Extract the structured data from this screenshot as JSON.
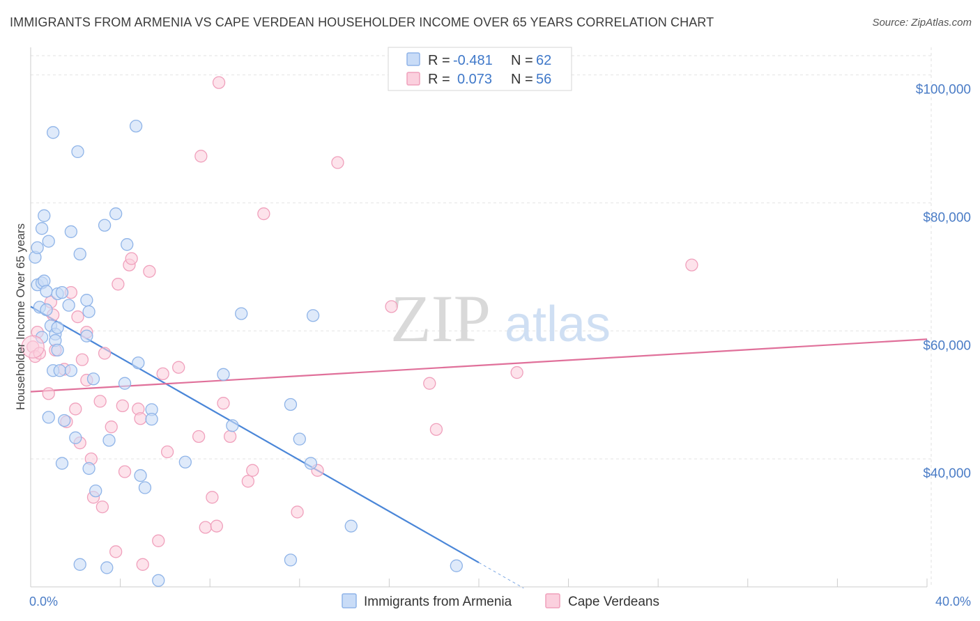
{
  "title": "IMMIGRANTS FROM ARMENIA VS CAPE VERDEAN HOUSEHOLDER INCOME OVER 65 YEARS CORRELATION CHART",
  "source": "Source: ZipAtlas.com",
  "watermark": {
    "zip": "ZIP",
    "atlas": "atlas"
  },
  "legend": [
    {
      "r_label": "R =",
      "r_value": "-0.481",
      "n_label": "N =",
      "n_value": "62",
      "color": "#8fb4e8",
      "fill": "#c9dcf7"
    },
    {
      "r_label": "R =",
      "r_value": "0.073",
      "n_label": "N =",
      "n_value": "56",
      "color": "#f0a0bc",
      "fill": "#fbd0de"
    }
  ],
  "bottom_legend": [
    {
      "label": "Immigrants from Armenia",
      "color": "#8fb4e8",
      "fill": "#c9dcf7"
    },
    {
      "label": "Cape Verdeans",
      "color": "#f0a0bc",
      "fill": "#fbd0de"
    }
  ],
  "chart_data": {
    "type": "scatter",
    "title": "IMMIGRANTS FROM ARMENIA VS CAPE VERDEAN HOUSEHOLDER INCOME OVER 65 YEARS CORRELATION CHART",
    "xlabel": "",
    "ylabel": "Householder Income Over 65 years",
    "xlim": [
      0,
      40
    ],
    "ylim": [
      20000,
      103000
    ],
    "x_tick_labels": [
      {
        "value": 0,
        "label": "0.0%"
      },
      {
        "value": 40,
        "label": "40.0%"
      }
    ],
    "y_tick_labels": [
      {
        "value": 40000,
        "label": "$40,000"
      },
      {
        "value": 60000,
        "label": "$60,000"
      },
      {
        "value": 80000,
        "label": "$80,000"
      },
      {
        "value": 100000,
        "label": "$100,000"
      }
    ],
    "grid": true,
    "legend_position": "top-center",
    "series": [
      {
        "name": "Immigrants from Armenia",
        "color": "#4a86d8",
        "fill": "#c9dcf7",
        "stroke": "#8fb4e8",
        "points": [
          [
            0.2,
            71.5
          ],
          [
            0.3,
            67.2
          ],
          [
            0.3,
            73.0
          ],
          [
            0.4,
            63.7
          ],
          [
            0.5,
            67.5
          ],
          [
            0.5,
            76.0
          ],
          [
            0.5,
            59.0
          ],
          [
            0.6,
            78.0
          ],
          [
            0.6,
            67.8
          ],
          [
            0.7,
            63.3
          ],
          [
            0.7,
            66.2
          ],
          [
            0.8,
            46.5
          ],
          [
            0.8,
            74.0
          ],
          [
            0.9,
            60.8
          ],
          [
            1.0,
            91.0
          ],
          [
            1.0,
            53.8
          ],
          [
            1.1,
            59.5
          ],
          [
            1.1,
            58.5
          ],
          [
            1.2,
            57.0
          ],
          [
            1.2,
            60.5
          ],
          [
            1.2,
            65.8
          ],
          [
            1.3,
            53.8
          ],
          [
            1.4,
            39.3
          ],
          [
            1.4,
            66.0
          ],
          [
            1.5,
            46.0
          ],
          [
            1.7,
            64.0
          ],
          [
            1.8,
            53.8
          ],
          [
            1.8,
            75.5
          ],
          [
            2.0,
            43.3
          ],
          [
            2.1,
            88.0
          ],
          [
            2.2,
            72.0
          ],
          [
            2.2,
            23.5
          ],
          [
            2.5,
            59.2
          ],
          [
            2.5,
            64.8
          ],
          [
            2.6,
            63.0
          ],
          [
            2.6,
            38.5
          ],
          [
            2.8,
            52.5
          ],
          [
            2.9,
            35.0
          ],
          [
            3.3,
            76.5
          ],
          [
            3.4,
            23.0
          ],
          [
            3.5,
            42.9
          ],
          [
            3.8,
            78.3
          ],
          [
            4.2,
            51.8
          ],
          [
            4.3,
            73.5
          ],
          [
            4.7,
            92.0
          ],
          [
            4.8,
            55.0
          ],
          [
            4.9,
            37.4
          ],
          [
            5.1,
            35.5
          ],
          [
            5.4,
            47.7
          ],
          [
            5.4,
            46.2
          ],
          [
            5.7,
            21.0
          ],
          [
            6.9,
            39.5
          ],
          [
            8.6,
            53.2
          ],
          [
            9.0,
            45.2
          ],
          [
            9.4,
            62.7
          ],
          [
            11.6,
            48.5
          ],
          [
            11.6,
            24.2
          ],
          [
            12.0,
            43.1
          ],
          [
            12.5,
            39.3
          ],
          [
            12.6,
            62.4
          ],
          [
            14.3,
            29.5
          ],
          [
            19.0,
            23.3
          ]
        ],
        "trend": {
          "x0": 0.0,
          "y0": 63.8,
          "x1": 20.0,
          "y1": 23.8,
          "dash_to_x": 22.0
        }
      },
      {
        "name": "Cape Verdeans",
        "color": "#e0709a",
        "fill": "#fbd0de",
        "stroke": "#f0a0bc",
        "points": [
          [
            0.1,
            57.5
          ],
          [
            0.2,
            56.0
          ],
          [
            0.3,
            59.8
          ],
          [
            0.4,
            56.5
          ],
          [
            0.8,
            50.2
          ],
          [
            0.9,
            64.5
          ],
          [
            1.0,
            62.5
          ],
          [
            1.1,
            57.0
          ],
          [
            1.5,
            54.0
          ],
          [
            1.6,
            45.8
          ],
          [
            1.8,
            66.0
          ],
          [
            2.0,
            47.8
          ],
          [
            2.1,
            62.2
          ],
          [
            2.2,
            42.5
          ],
          [
            2.3,
            55.5
          ],
          [
            2.5,
            52.3
          ],
          [
            2.5,
            59.8
          ],
          [
            2.7,
            40.0
          ],
          [
            2.8,
            34.0
          ],
          [
            3.1,
            49.0
          ],
          [
            3.2,
            32.5
          ],
          [
            3.3,
            56.5
          ],
          [
            3.6,
            45.0
          ],
          [
            3.8,
            25.5
          ],
          [
            3.9,
            67.3
          ],
          [
            4.1,
            48.3
          ],
          [
            4.2,
            38.0
          ],
          [
            4.4,
            70.3
          ],
          [
            4.5,
            71.3
          ],
          [
            4.8,
            47.8
          ],
          [
            4.9,
            46.3
          ],
          [
            5.0,
            23.5
          ],
          [
            5.3,
            69.3
          ],
          [
            5.7,
            27.2
          ],
          [
            5.9,
            53.3
          ],
          [
            6.1,
            41.1
          ],
          [
            6.6,
            54.3
          ],
          [
            7.5,
            43.5
          ],
          [
            7.6,
            87.3
          ],
          [
            7.8,
            29.3
          ],
          [
            8.1,
            34.0
          ],
          [
            8.3,
            29.5
          ],
          [
            8.4,
            98.8
          ],
          [
            8.6,
            48.7
          ],
          [
            8.9,
            43.5
          ],
          [
            9.7,
            36.5
          ],
          [
            9.9,
            38.2
          ],
          [
            10.4,
            78.3
          ],
          [
            11.9,
            31.7
          ],
          [
            12.8,
            38.2
          ],
          [
            13.7,
            86.3
          ],
          [
            16.1,
            63.8
          ],
          [
            17.8,
            51.8
          ],
          [
            18.1,
            44.6
          ],
          [
            21.7,
            53.5
          ],
          [
            29.5,
            70.3
          ]
        ],
        "trend": {
          "x0": 0.0,
          "y0": 50.5,
          "x1": 40.0,
          "y1": 58.7
        }
      }
    ]
  }
}
